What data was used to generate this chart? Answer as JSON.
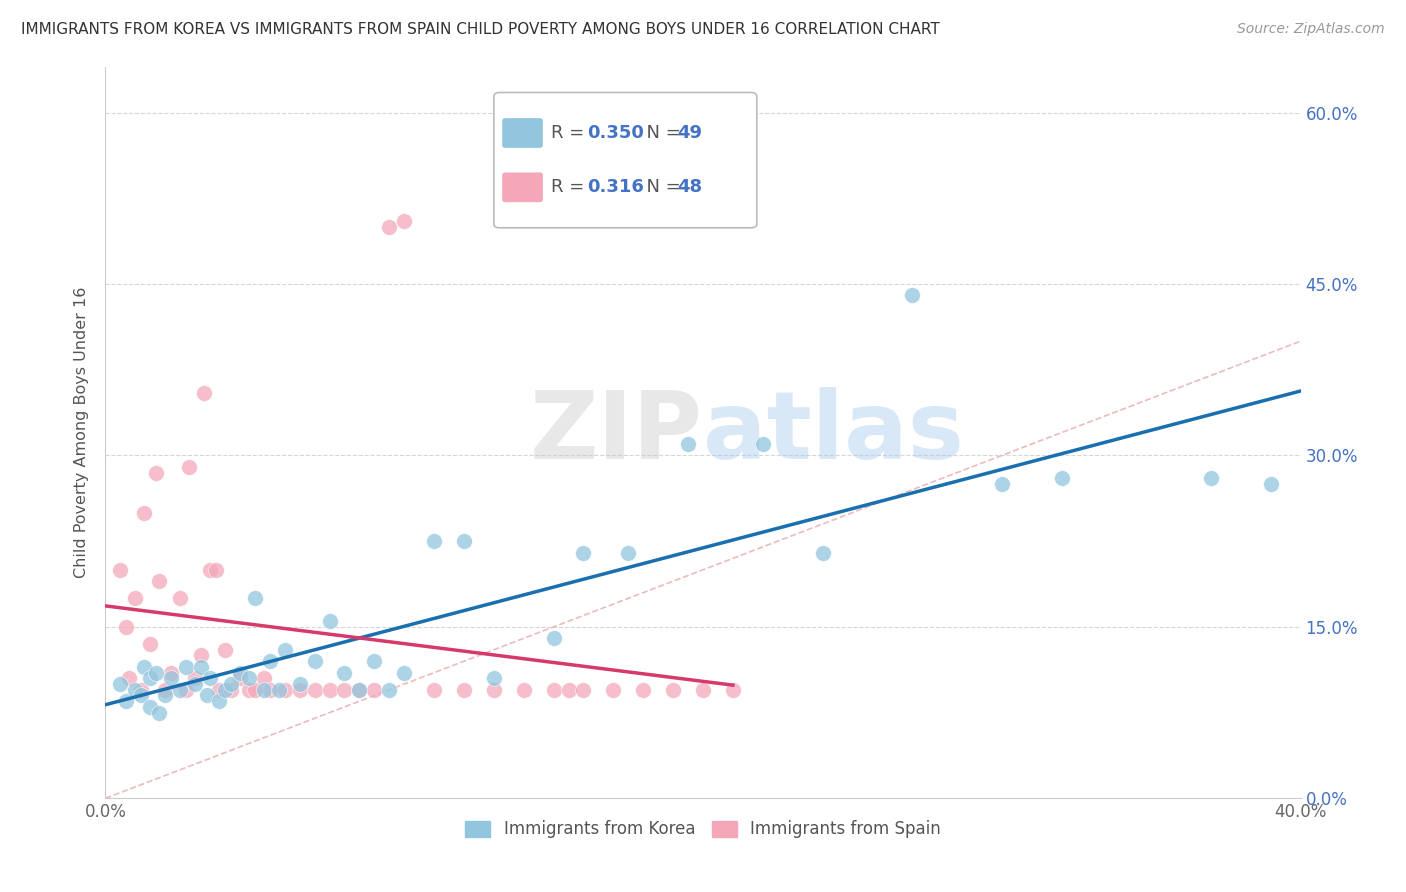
{
  "title": "IMMIGRANTS FROM KOREA VS IMMIGRANTS FROM SPAIN CHILD POVERTY AMONG BOYS UNDER 16 CORRELATION CHART",
  "source": "Source: ZipAtlas.com",
  "ylabel": "Child Poverty Among Boys Under 16",
  "xlim": [
    0.0,
    0.4
  ],
  "ylim": [
    0.0,
    0.64
  ],
  "yticks": [
    0.0,
    0.15,
    0.3,
    0.45,
    0.6
  ],
  "ytick_labels": [
    "0.0%",
    "15.0%",
    "30.0%",
    "45.0%",
    "60.0%"
  ],
  "korea_color": "#92c5de",
  "spain_color": "#f4a7b9",
  "korea_line_color": "#1a6faf",
  "spain_line_color": "#d63a6a",
  "diagonal_color": "#e8b4b8",
  "background_color": "#ffffff",
  "watermark_zip": "ZIP",
  "watermark_atlas": "atlas",
  "korea_x": [
    0.005,
    0.007,
    0.01,
    0.012,
    0.013,
    0.015,
    0.015,
    0.017,
    0.018,
    0.02,
    0.022,
    0.025,
    0.027,
    0.03,
    0.032,
    0.034,
    0.035,
    0.038,
    0.04,
    0.042,
    0.045,
    0.048,
    0.05,
    0.053,
    0.055,
    0.058,
    0.06,
    0.065,
    0.07,
    0.075,
    0.08,
    0.085,
    0.09,
    0.095,
    0.1,
    0.11,
    0.12,
    0.13,
    0.15,
    0.16,
    0.175,
    0.195,
    0.22,
    0.24,
    0.27,
    0.3,
    0.32,
    0.37,
    0.39
  ],
  "korea_y": [
    0.1,
    0.085,
    0.095,
    0.09,
    0.115,
    0.105,
    0.08,
    0.11,
    0.075,
    0.09,
    0.105,
    0.095,
    0.115,
    0.1,
    0.115,
    0.09,
    0.105,
    0.085,
    0.095,
    0.1,
    0.11,
    0.105,
    0.175,
    0.095,
    0.12,
    0.095,
    0.13,
    0.1,
    0.12,
    0.155,
    0.11,
    0.095,
    0.12,
    0.095,
    0.11,
    0.225,
    0.225,
    0.105,
    0.14,
    0.215,
    0.215,
    0.31,
    0.31,
    0.215,
    0.44,
    0.275,
    0.28,
    0.28,
    0.275
  ],
  "spain_x": [
    0.005,
    0.007,
    0.008,
    0.01,
    0.012,
    0.013,
    0.015,
    0.017,
    0.018,
    0.02,
    0.022,
    0.025,
    0.027,
    0.028,
    0.03,
    0.032,
    0.033,
    0.035,
    0.037,
    0.038,
    0.04,
    0.042,
    0.045,
    0.048,
    0.05,
    0.053,
    0.055,
    0.06,
    0.065,
    0.07,
    0.075,
    0.08,
    0.085,
    0.09,
    0.095,
    0.1,
    0.11,
    0.12,
    0.13,
    0.14,
    0.15,
    0.155,
    0.16,
    0.17,
    0.18,
    0.19,
    0.2,
    0.21
  ],
  "spain_y": [
    0.2,
    0.15,
    0.105,
    0.175,
    0.095,
    0.25,
    0.135,
    0.285,
    0.19,
    0.095,
    0.11,
    0.175,
    0.095,
    0.29,
    0.105,
    0.125,
    0.355,
    0.2,
    0.2,
    0.095,
    0.13,
    0.095,
    0.105,
    0.095,
    0.095,
    0.105,
    0.095,
    0.095,
    0.095,
    0.095,
    0.095,
    0.095,
    0.095,
    0.095,
    0.5,
    0.505,
    0.095,
    0.095,
    0.095,
    0.095,
    0.095,
    0.095,
    0.095,
    0.095,
    0.095,
    0.095,
    0.095,
    0.095
  ],
  "legend_korea_r": "0.350",
  "legend_korea_n": "49",
  "legend_spain_r": "0.316",
  "legend_spain_n": "48"
}
